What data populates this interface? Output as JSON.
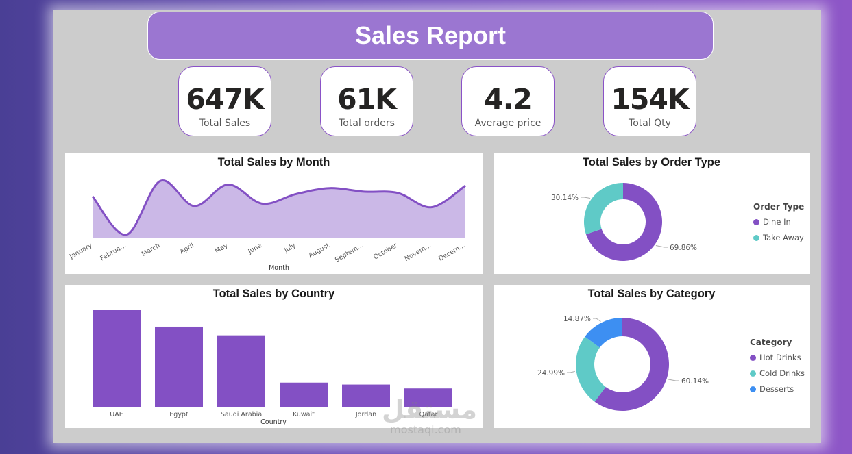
{
  "report": {
    "title": "Sales Report"
  },
  "kpis": [
    {
      "value": "647K",
      "label": "Total Sales"
    },
    {
      "value": "61K",
      "label": "Total orders"
    },
    {
      "value": "4.2",
      "label": "Average price"
    },
    {
      "value": "154K",
      "label": "Total Qty"
    }
  ],
  "watermark": {
    "logo": "مستقل",
    "site": "mostaql.com"
  },
  "colors": {
    "purple": "#8350c4",
    "teal": "#5fcac7",
    "blue": "#3d8ff2",
    "area": "#cbb8e7"
  },
  "chart_data": [
    {
      "type": "area",
      "title": "Total Sales by Month",
      "xlabel": "Month",
      "categories": [
        "January",
        "Februa...",
        "March",
        "April",
        "May",
        "June",
        "July",
        "August",
        "Septem...",
        "October",
        "Novem...",
        "Decem..."
      ],
      "values": [
        50,
        18,
        63,
        42,
        60,
        44,
        52,
        57,
        54,
        53,
        41,
        59
      ],
      "ylim": [
        15,
        70
      ]
    },
    {
      "type": "pie",
      "title": "Total Sales by Order Type",
      "legend_title": "Order Type",
      "labels": [
        "Dine In",
        "Take Away"
      ],
      "values": [
        69.86,
        30.14
      ],
      "value_labels": [
        "69.86%",
        "30.14%"
      ]
    },
    {
      "type": "bar",
      "title": "Total Sales by Country",
      "xlabel": "Country",
      "categories": [
        "UAE",
        "Egypt",
        "Saudi Arabia",
        "Kuwait",
        "Jordan",
        "Qatar"
      ],
      "values": [
        100,
        83,
        74,
        25,
        23,
        19
      ],
      "ylim": [
        0,
        100
      ]
    },
    {
      "type": "pie",
      "title": "Total Sales by Category",
      "legend_title": "Category",
      "labels": [
        "Hot  Drinks",
        "Cold  Drinks",
        "Desserts"
      ],
      "values": [
        60.14,
        24.99,
        14.87
      ],
      "value_labels": [
        "60.14%",
        "24.99%",
        "14.87%"
      ]
    }
  ]
}
